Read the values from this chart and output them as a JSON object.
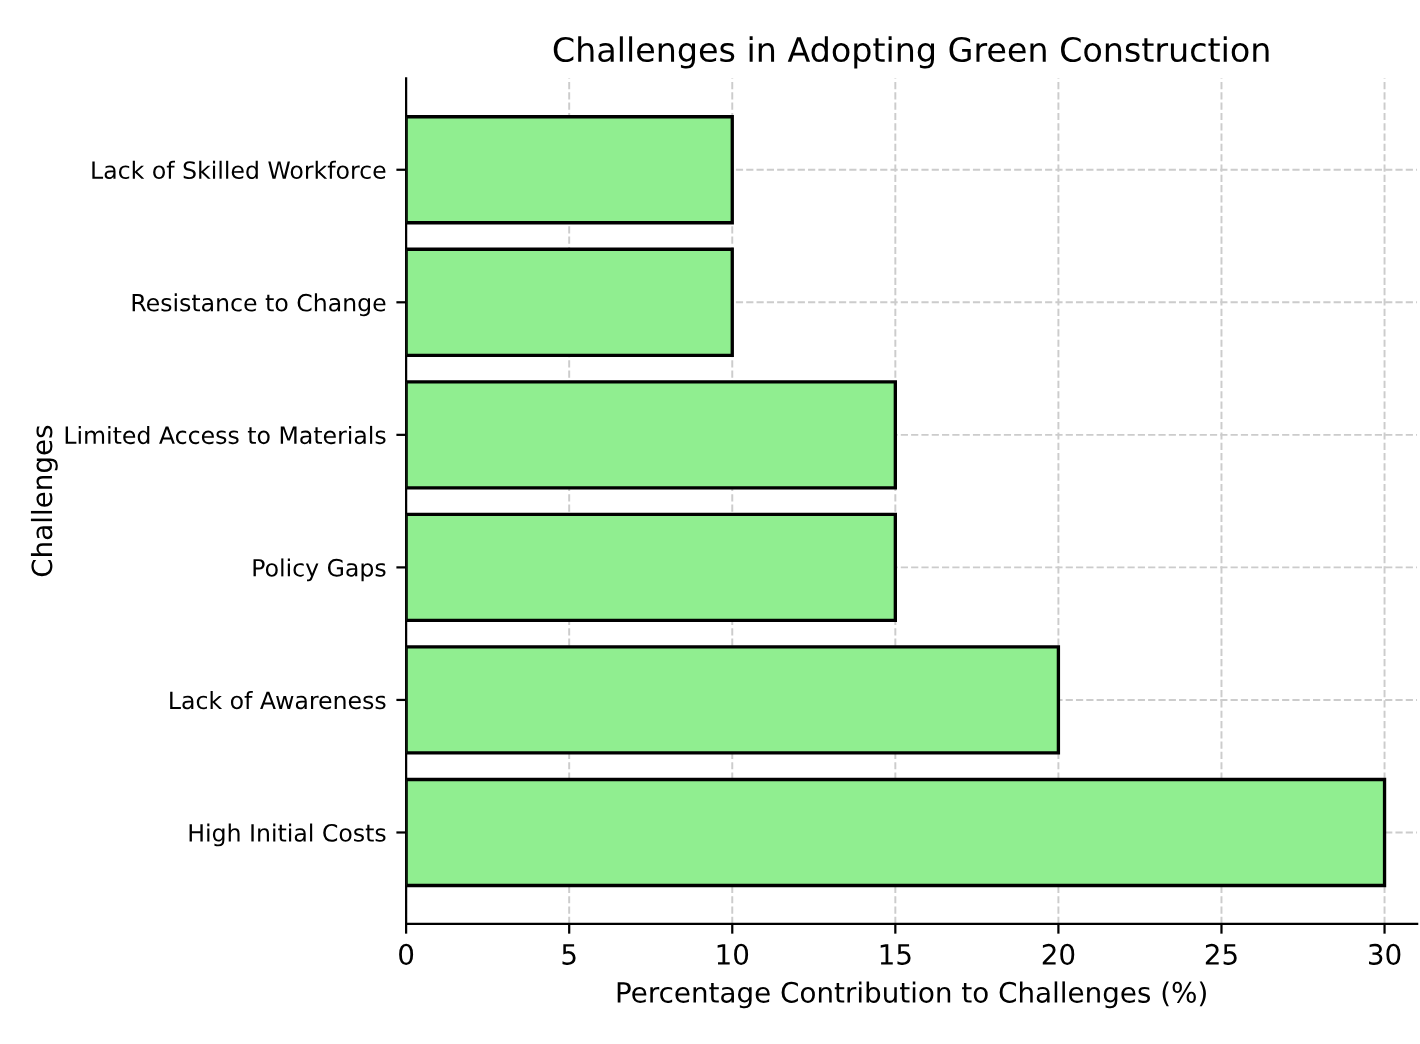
{
  "chart_data": {
    "type": "bar",
    "orientation": "horizontal",
    "title": "Challenges in Adopting Green Construction",
    "xlabel": "Percentage Contribution to Challenges (%)",
    "ylabel": "Challenges",
    "categories": [
      "Lack of Skilled Workforce",
      "Resistance to Change",
      "Limited Access to Materials",
      "Policy Gaps",
      "Lack of Awareness",
      "High Initial Costs"
    ],
    "values": [
      10,
      10,
      15,
      15,
      20,
      30
    ],
    "color": "#90ee90",
    "xlim": [
      0,
      31
    ],
    "xticks": [
      0,
      5,
      10,
      15,
      20,
      25,
      30
    ],
    "grid": true
  }
}
